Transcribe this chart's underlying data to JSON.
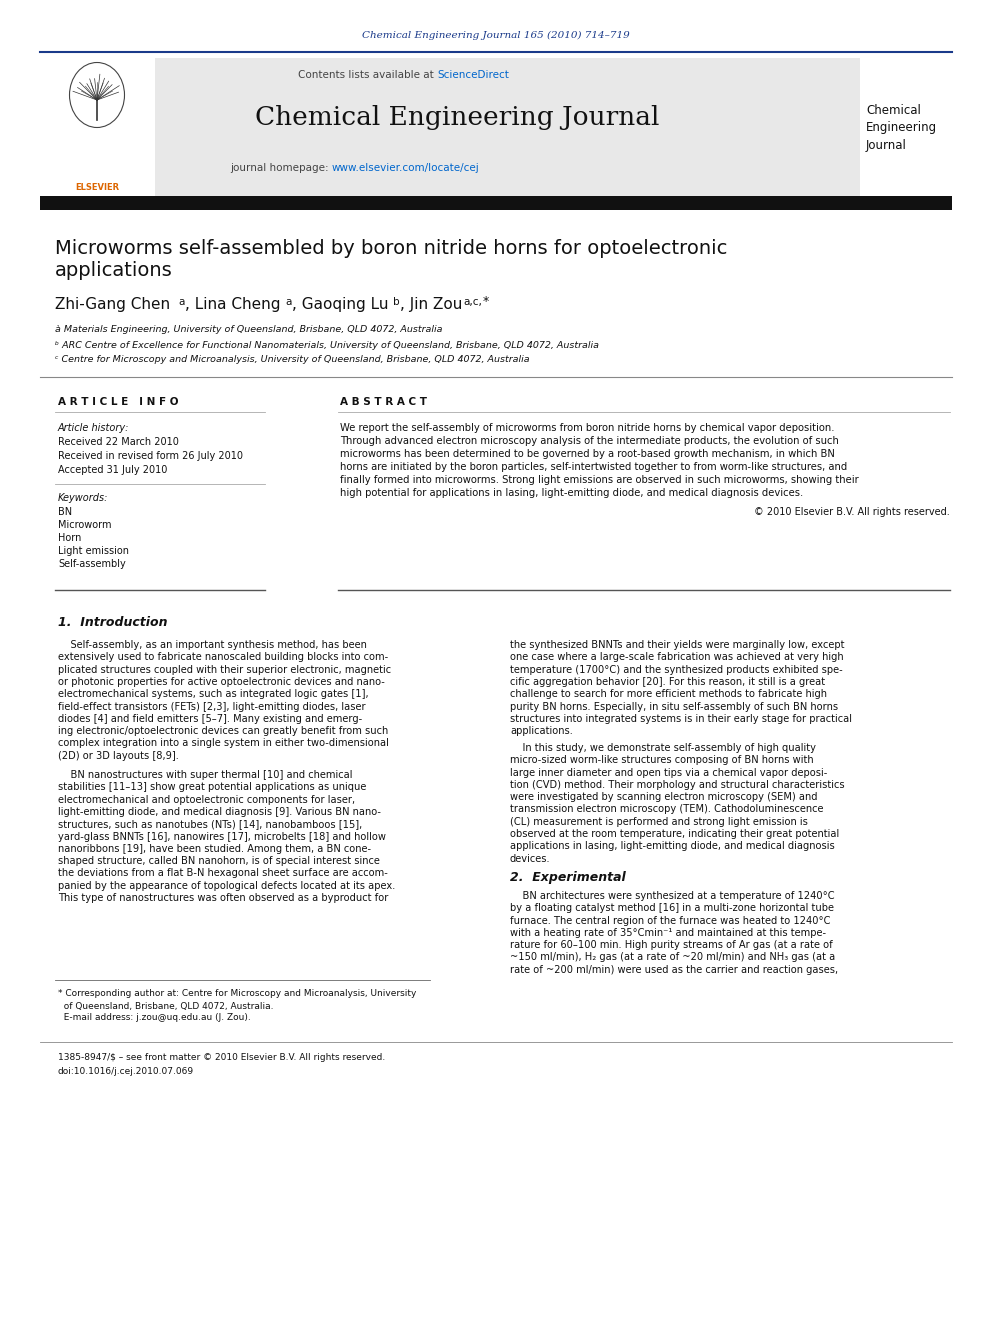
{
  "fig_width": 9.92,
  "fig_height": 13.23,
  "bg_color": "#ffffff",
  "journal_ref": "Chemical Engineering Journal 165 (2010) 714–719",
  "journal_ref_color": "#1a3a8a",
  "header_bg": "#e8e8e8",
  "contents_line": "Contents lists available at ",
  "sciencedirect": "ScienceDirect",
  "sciencedirect_color": "#0066cc",
  "journal_title": "Chemical Engineering Journal",
  "journal_homepage_prefix": "journal homepage: ",
  "journal_url": "www.elsevier.com/locate/cej",
  "journal_url_color": "#0066cc",
  "right_journal_name": "Chemical\nEngineering\nJournal",
  "dark_bar_color": "#111111",
  "paper_title_line1": "Microworms self-assembled by boron nitride horns for optoelectronic",
  "paper_title_line2": "applications",
  "affil_a": "à Materials Engineering, University of Queensland, Brisbane, QLD 4072, Australia",
  "affil_b": "ᵇ ARC Centre of Excellence for Functional Nanomaterials, University of Queensland, Brisbane, QLD 4072, Australia",
  "affil_c": "ᶜ Centre for Microscopy and Microanalysis, University of Queensland, Brisbane, QLD 4072, Australia",
  "article_info_header": "A R T I C L E   I N F O",
  "abstract_header": "A B S T R A C T",
  "article_history_label": "Article history:",
  "received1": "Received 22 March 2010",
  "received2": "Received in revised form 26 July 2010",
  "accepted": "Accepted 31 July 2010",
  "keywords_label": "Keywords:",
  "keywords": [
    "BN",
    "Microworm",
    "Horn",
    "Light emission",
    "Self-assembly"
  ],
  "copyright": "© 2010 Elsevier B.V. All rights reserved.",
  "section1_title": "1.  Introduction",
  "section2_title": "2.  Experimental",
  "bottom_text1": "1385-8947/$ – see front matter © 2010 Elsevier B.V. All rights reserved.",
  "bottom_text2": "doi:10.1016/j.cej.2010.07.069",
  "left_col_lines_intro": [
    "    Self-assembly, as an important synthesis method, has been",
    "extensively used to fabricate nanoscaled building blocks into com-",
    "plicated structures coupled with their superior electronic, magnetic",
    "or photonic properties for active optoelectronic devices and nano-",
    "electromechanical systems, such as integrated logic gates [1],",
    "field-effect transistors (FETs) [2,3], light-emitting diodes, laser",
    "diodes [4] and field emitters [5–7]. Many existing and emerg-",
    "ing electronic/optoelectronic devices can greatly benefit from such",
    "complex integration into a single system in either two-dimensional",
    "(2D) or 3D layouts [8,9]."
  ],
  "left_col_lines_bn": [
    "    BN nanostructures with super thermal [10] and chemical",
    "stabilities [11–13] show great potential applications as unique",
    "electromechanical and optoelectronic components for laser,",
    "light-emitting diode, and medical diagnosis [9]. Various BN nano-",
    "structures, such as nanotubes (NTs) [14], nanobamboos [15],",
    "yard-glass BNNTs [16], nanowires [17], microbelts [18] and hollow",
    "nanoribbons [19], have been studied. Among them, a BN cone-",
    "shaped structure, called BN nanohorn, is of special interest since",
    "the deviations from a flat B-N hexagonal sheet surface are accom-",
    "panied by the appearance of topological defects located at its apex.",
    "This type of nanostructures was often observed as a byproduct for"
  ],
  "right_col_lines1": [
    "the synthesized BNNTs and their yields were marginally low, except",
    "one case where a large-scale fabrication was achieved at very high",
    "temperature (1700°C) and the synthesized products exhibited spe-",
    "cific aggregation behavior [20]. For this reason, it still is a great",
    "challenge to search for more efficient methods to fabricate high",
    "purity BN horns. Especially, in situ self-assembly of such BN horns",
    "structures into integrated systems is in their early stage for practical",
    "applications."
  ],
  "right_col_lines2": [
    "    In this study, we demonstrate self-assembly of high quality",
    "micro-sized worm-like structures composing of BN horns with",
    "large inner diameter and open tips via a chemical vapor deposi-",
    "tion (CVD) method. Their morphology and structural characteristics",
    "were investigated by scanning electron microscopy (SEM) and",
    "transmission electron microscopy (TEM). Cathodoluminescence",
    "(CL) measurement is performed and strong light emission is",
    "observed at the room temperature, indicating their great potential",
    "applications in lasing, light-emitting diode, and medical diagnosis",
    "devices."
  ],
  "exp_lines": [
    "    BN architectures were synthesized at a temperature of 1240°C",
    "by a floating catalyst method [16] in a multi-zone horizontal tube",
    "furnace. The central region of the furnace was heated to 1240°C",
    "with a heating rate of 35°Cmin⁻¹ and maintained at this tempe-",
    "rature for 60–100 min. High purity streams of Ar gas (at a rate of",
    "~150 ml/min), H₂ gas (at a rate of ~20 ml/min) and NH₃ gas (at a",
    "rate of ~200 ml/min) were used as the carrier and reaction gases,"
  ],
  "abstract_lines": [
    "We report the self-assembly of microworms from boron nitride horns by chemical vapor deposition.",
    "Through advanced electron microscopy analysis of the intermediate products, the evolution of such",
    "microworms has been determined to be governed by a root-based growth mechanism, in which BN",
    "horns are initiated by the boron particles, self-intertwisted together to from worm-like structures, and",
    "finally formed into microworms. Strong light emissions are observed in such microworms, showing their",
    "high potential for applications in lasing, light-emitting diode, and medical diagnosis devices."
  ],
  "footnote_lines": [
    "* Corresponding author at: Centre for Microscopy and Microanalysis, University",
    "  of Queensland, Brisbane, QLD 4072, Australia.",
    "  E-mail address: j.zou@uq.edu.au (J. Zou)."
  ]
}
